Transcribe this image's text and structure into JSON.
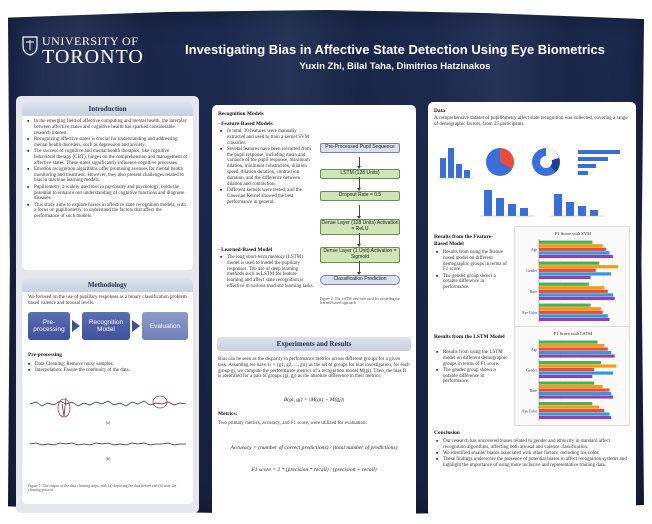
{
  "header": {
    "logo_line1": "UNIVERSITY OF",
    "logo_line2": "TORONTO",
    "title": "Investigating Bias in Affective State Detection Using Eye Biometrics",
    "authors": "Yuxin Zhi, Bilal Taha, Dimitrios Hatzinakos"
  },
  "introduction": {
    "heading": "Introduction",
    "bullets": [
      "In the emerging field of affective computing and mental health, the interplay between affective states and cognitive health has sparked considerable research interest.",
      "Recognizing affective states is crucial for understanding and addressing mental health disorders, such as depression and anxiety.",
      "The success of cognitive and mental health therapies, like cognitive behavioral therapy (CBT), hinges on the comprehension and management of affective states. These states significantly influence cognitive processes.",
      "Emotion recognition algorithms offer promising avenues for mental health monitoring and treatment. However, they also present challenges related to bias in machine learning models.",
      "Pupillometry, a widely used tool in psychiatry and psychology, holds the potential to enhance our understanding of cognitive functions and diagnose diseases.",
      "This study aims to explore biases in affective state recognition models, with a focus on pupillometry, to understand the factors that affect the performance of such models."
    ]
  },
  "methodology": {
    "heading": "Methodology",
    "intro": "We focused on the use of pupillary responses as a binary classification problem based valence and arousal levels.",
    "pipeline": [
      "Pre-processing",
      "Recognition Model",
      "Evaluation"
    ],
    "preprocessing_heading": "Pre-processing",
    "preprocessing_bullets": [
      "Data Cleaning: Remove noisy samples.",
      "Interpolation: Ensure the continuity of the data."
    ],
    "signal_labels": [
      "(a)",
      "(b)"
    ],
    "figure_caption": "Figure 1: The output of the data cleaning steps, with (a) depicting the data before and (b) after the cleaning process."
  },
  "recognition": {
    "heading": "Recognition Models",
    "feature_heading": "- Feature-Based Models",
    "feature_bullets": [
      "In total, 30 features were manually extracted and used to train a kernel SVM classifier.",
      "Several features have been extracted from the pupil response, including mean and variance of the pupil response, maximum dilation, minimum constriction, dilation speed, dilation duration, contraction duration, and the difference between dilation and contraction.",
      "Different kernels were tested, and the Gaussian Kernel showed the best performance in general."
    ],
    "learned_heading": "- Learned-Based Model",
    "learned_bullets": [
      "The long short-term memory (LSTM) model is used to model the pupillary responses. The use of deep learning methods such as LSTM for feature learning and affect state recognition is effective in various machine learning tasks."
    ],
    "flowchart": [
      "Pre-Processed Pupil Sequence",
      "LSTM (128 Units)",
      "Dropout Rate = 0.5",
      "Dense Layer (128 Units) Activation = ReLU",
      "Dense Layer (1 Unit) Activation = Sigmoid",
      "Classification Prediction"
    ],
    "flow_caption": "Figure 2: The LSTM structure used for modeling the learned-based approach."
  },
  "experiments": {
    "heading": "Experiments and Results",
    "para1": "Bias can be seen as the disparity in performance metrics across different groups for a given task. Assuming we have G = {g1, g2, ..., gn} as the set of groups for bias investigation, for each group gi, we compute the performance metrics of a recognition model M(gi). Then, the bias B is identified for a pair of groups (gi, gj) as the absolute difference in their metrics.",
    "formula_bias": "B(gi, gj) = |M(gi) − M(gj)|",
    "metrics_heading": "Metrics:",
    "metrics_text": "Two primary metrics, accuracy, and F1 score, were utilized for evaluation.",
    "formula_accuracy": "Accuracy = (number of correct predictions) / (total number of predictions)",
    "formula_f1": "F1 score = 2 * (precision * recall) / (precision + recall)"
  },
  "data_section": {
    "heading": "Data",
    "text": "A comprehensive dataset of pupillometry affect state recognition was collected, covering a range of demographic factors, from 35 participants."
  },
  "results_feature": {
    "heading": "Results from the Feature-Based Model",
    "bullets": [
      "Results from using the feature based model on different demographic groups in terms of F1 score.",
      "The gender group shows a notable difference in performance."
    ],
    "chart_title": "F1 Score with SVM",
    "categories": [
      "Age",
      "Gender",
      "Race",
      "Eye Color"
    ]
  },
  "results_lstm": {
    "heading": "Results from the LSTM Model",
    "bullets": [
      "Results from using the LSTM model on different demographic groups in terms of F1 score.",
      "The gender group shows a notable difference in performance."
    ],
    "chart_title": "F1 Score with LSTM",
    "categories": [
      "Age",
      "Gender",
      "Race",
      "Eye Color"
    ]
  },
  "conclusion": {
    "heading": "Conclusion",
    "bullets": [
      "Our research has uncovered biases related to gender and ethnicity in standard affect recognition algorithms, affecting both arousal and valence classification.",
      "We identified smaller biases associated with other factors, including iris color.",
      "These findings underscore the presence of potential biases in affect recognition systems and highlight the importance of using more inclusive and representative training data."
    ]
  },
  "colors": {
    "poster_navy": "#1d2a50",
    "pipeline_blue": "#4a5ca6",
    "flow_green": "#cfe5b8",
    "bar_green": "#4caf50",
    "bar_orange": "#f39c12",
    "bar_red": "#e74c3c",
    "bar_blue": "#3498db"
  },
  "chart_data": [
    {
      "type": "bar",
      "orientation": "horizontal",
      "title": "F1 Score with SVM",
      "categories": [
        "Age",
        "Gender",
        "Race",
        "Eye Color"
      ],
      "series": [
        {
          "values": [
            0.62,
            0.7,
            0.58,
            0.6
          ]
        },
        {
          "values": [
            0.74,
            0.92,
            0.76,
            0.72
          ]
        },
        {
          "values": [
            0.78,
            0.66,
            0.8,
            0.74
          ]
        },
        {
          "values": [
            0.82,
            0.84,
            0.86,
            0.8
          ]
        },
        {
          "values": [
            0.86,
            0.6,
            0.88,
            0.82
          ]
        }
      ],
      "xlim": [
        0,
        1
      ]
    },
    {
      "type": "bar",
      "orientation": "horizontal",
      "title": "F1 Score with LSTM",
      "categories": [
        "Age",
        "Gender",
        "Race",
        "Eye Color"
      ],
      "series": [
        {
          "values": [
            0.68,
            0.72,
            0.64,
            0.62
          ]
        },
        {
          "values": [
            0.76,
            0.9,
            0.74,
            0.7
          ]
        },
        {
          "values": [
            0.8,
            0.64,
            0.82,
            0.76
          ]
        },
        {
          "values": [
            0.84,
            0.86,
            0.84,
            0.82
          ]
        },
        {
          "values": [
            0.88,
            0.62,
            0.86,
            0.84
          ]
        }
      ],
      "xlim": [
        0,
        1
      ]
    }
  ]
}
